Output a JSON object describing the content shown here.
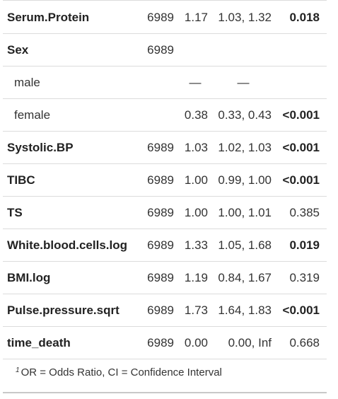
{
  "table": {
    "rows": [
      {
        "label": "Serum.Protein",
        "n": "6989",
        "or": "1.17",
        "ci": "1.03, 1.32",
        "p": "0.018",
        "p_bold": true,
        "label_bold": true,
        "indent": false
      },
      {
        "label": "Sex",
        "n": "6989",
        "or": "",
        "ci": "",
        "p": "",
        "p_bold": false,
        "label_bold": true,
        "indent": false
      },
      {
        "label": "male",
        "n": "",
        "or": "—",
        "ci": "—",
        "p": "",
        "p_bold": false,
        "label_bold": false,
        "indent": true,
        "dashes": true
      },
      {
        "label": "female",
        "n": "",
        "or": "0.38",
        "ci": "0.33, 0.43",
        "p": "<0.001",
        "p_bold": true,
        "label_bold": false,
        "indent": true
      },
      {
        "label": "Systolic.BP",
        "n": "6989",
        "or": "1.03",
        "ci": "1.02, 1.03",
        "p": "<0.001",
        "p_bold": true,
        "label_bold": true,
        "indent": false
      },
      {
        "label": "TIBC",
        "n": "6989",
        "or": "1.00",
        "ci": "0.99, 1.00",
        "p": "<0.001",
        "p_bold": true,
        "label_bold": true,
        "indent": false
      },
      {
        "label": "TS",
        "n": "6989",
        "or": "1.00",
        "ci": "1.00, 1.01",
        "p": "0.385",
        "p_bold": false,
        "label_bold": true,
        "indent": false
      },
      {
        "label": "White.blood.cells.log",
        "n": "6989",
        "or": "1.33",
        "ci": "1.05, 1.68",
        "p": "0.019",
        "p_bold": true,
        "label_bold": true,
        "indent": false
      },
      {
        "label": "BMI.log",
        "n": "6989",
        "or": "1.19",
        "ci": "0.84, 1.67",
        "p": "0.319",
        "p_bold": false,
        "label_bold": true,
        "indent": false
      },
      {
        "label": "Pulse.pressure.sqrt",
        "n": "6989",
        "or": "1.73",
        "ci": "1.64, 1.83",
        "p": "<0.001",
        "p_bold": true,
        "label_bold": true,
        "indent": false
      },
      {
        "label": "time_death",
        "n": "6989",
        "or": "0.00",
        "ci": "0.00, Inf",
        "p": "0.668",
        "p_bold": false,
        "label_bold": true,
        "indent": false
      }
    ],
    "footnote_marker": "1",
    "footnote": "OR = Odds Ratio, CI = Confidence Interval"
  }
}
